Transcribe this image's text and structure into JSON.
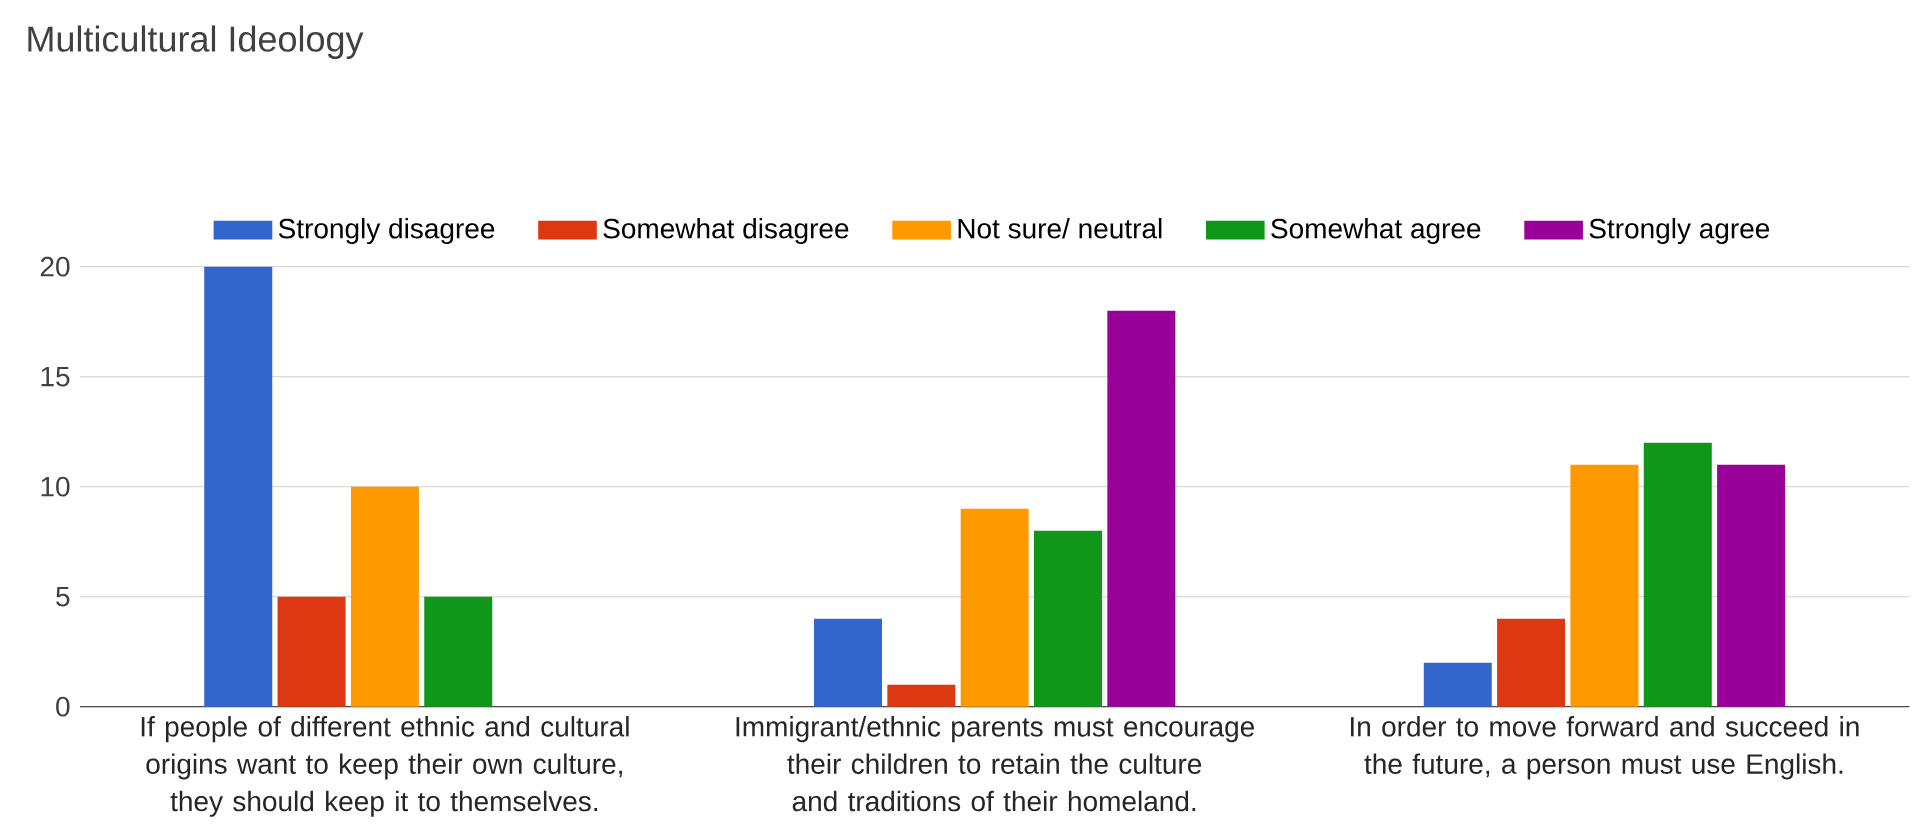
{
  "chart_data": {
    "type": "bar",
    "title": "Multicultural Ideology",
    "categories": [
      "If people of different ethnic and cultural origins want to keep their own culture, they should keep it to themselves.",
      "Immigrant/ethnic parents must encourage their children to retain the culture and traditions of their homeland.",
      "In order to move forward and succeed in the future, a person must use English."
    ],
    "series": [
      {
        "name": "Strongly disagree",
        "color": "#3366cc",
        "values": [
          20,
          4,
          2
        ]
      },
      {
        "name": "Somewhat disagree",
        "color": "#dc3912",
        "values": [
          5,
          1,
          4
        ]
      },
      {
        "name": "Not sure/ neutral",
        "color": "#ff9900",
        "values": [
          10,
          9,
          11
        ]
      },
      {
        "name": "Somewhat agree",
        "color": "#109618",
        "values": [
          5,
          8,
          12
        ]
      },
      {
        "name": "Strongly agree",
        "color": "#990099",
        "values": [
          0,
          18,
          11
        ]
      }
    ],
    "ylim": [
      0,
      20
    ],
    "yticks": [
      0,
      5,
      10,
      15,
      20
    ],
    "grid": "y",
    "legend": "top"
  }
}
